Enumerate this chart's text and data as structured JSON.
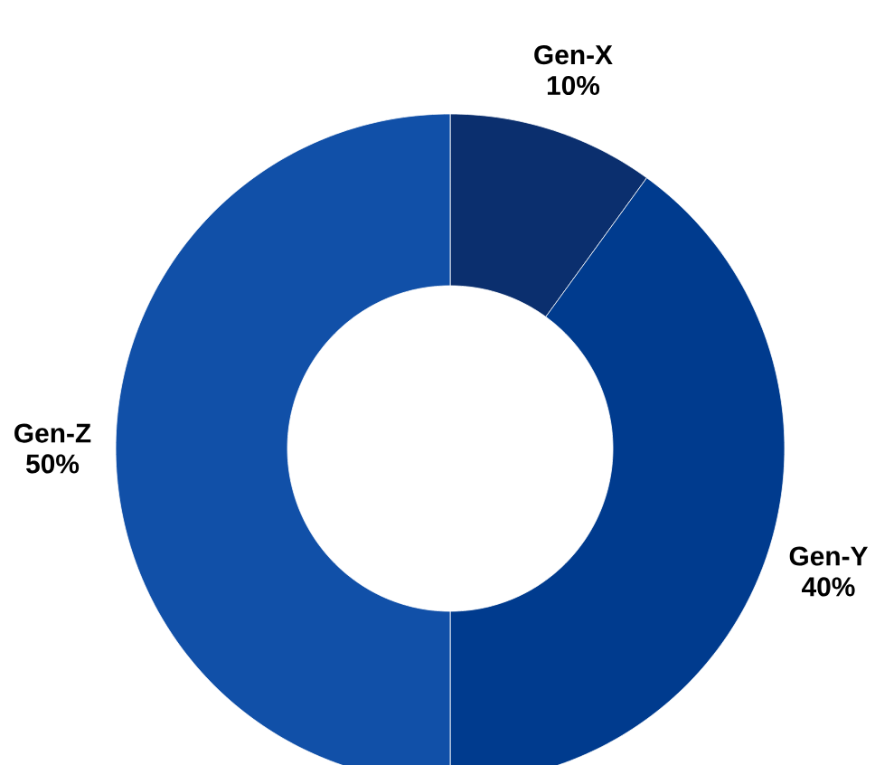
{
  "chart_data": {
    "type": "donut",
    "categories": [
      "Gen-X",
      "Gen-Y",
      "Gen-Z"
    ],
    "values": [
      10,
      40,
      50
    ],
    "colors": [
      "#0b2f6e",
      "#003b8e",
      "#1150a8"
    ],
    "value_labels": [
      "10%",
      "40%",
      "50%"
    ]
  }
}
